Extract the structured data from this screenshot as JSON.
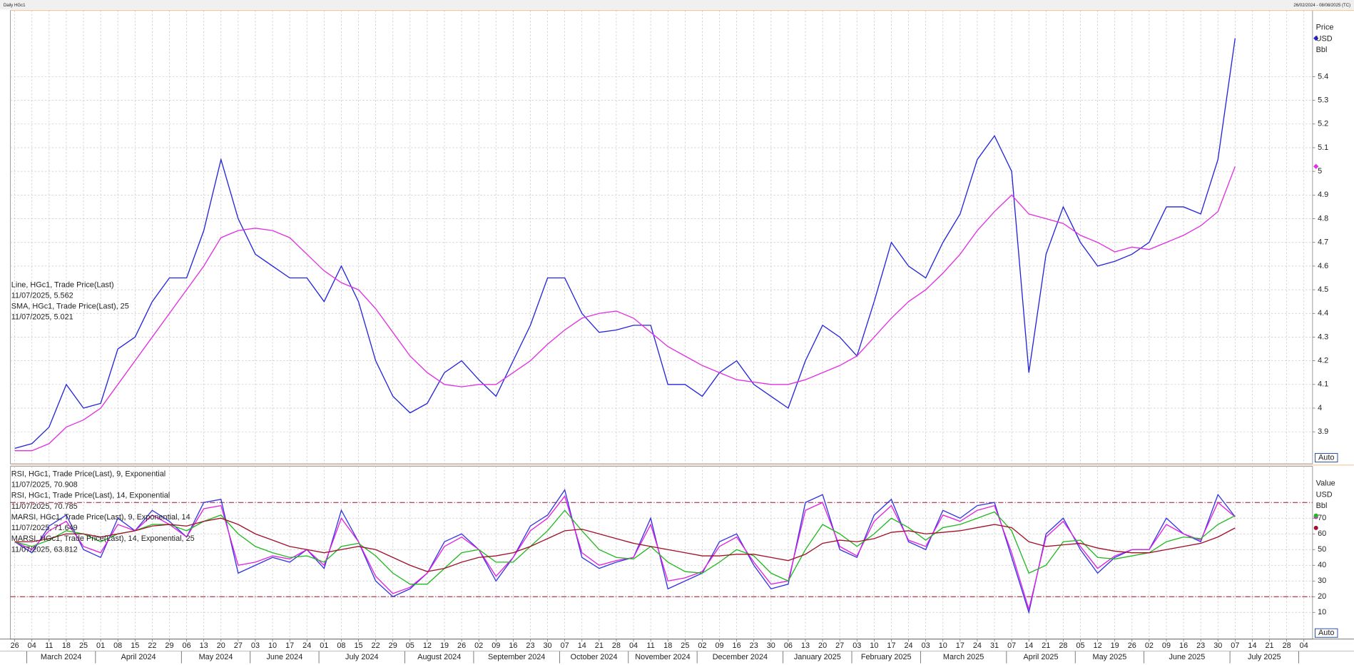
{
  "header": {
    "title": "Daily HGc1",
    "date_range": "26/02/2024 - 08/08/2025 (TC)"
  },
  "chart_data": [
    {
      "type": "line",
      "axis_label": [
        "Price",
        "USD",
        "Bbl"
      ],
      "button": "Auto",
      "ylim": [
        3.765,
        5.68
      ],
      "yticks": [
        3.9,
        4,
        4.1,
        4.2,
        4.3,
        4.4,
        4.5,
        4.6,
        4.7,
        4.8,
        4.9,
        5,
        5.1,
        5.2,
        5.3,
        5.4
      ],
      "grid": true,
      "series": [
        {
          "name": "Line, HGc1, Trade Price(Last)",
          "legend_value": "11/07/2025, 5.562",
          "color": "#2424dc",
          "values": [
            3.83,
            3.85,
            3.92,
            4.1,
            4.0,
            4.02,
            4.25,
            4.3,
            4.45,
            4.55,
            4.55,
            4.75,
            5.05,
            4.8,
            4.65,
            4.6,
            4.55,
            4.55,
            4.45,
            4.6,
            4.45,
            4.2,
            4.05,
            3.98,
            4.02,
            4.15,
            4.2,
            4.12,
            4.05,
            4.2,
            4.35,
            4.55,
            4.55,
            4.4,
            4.32,
            4.33,
            4.35,
            4.35,
            4.1,
            4.1,
            4.05,
            4.15,
            4.2,
            4.1,
            4.05,
            4.0,
            4.2,
            4.35,
            4.3,
            4.22,
            4.45,
            4.7,
            4.6,
            4.55,
            4.7,
            4.82,
            5.05,
            5.15,
            5.0,
            4.15,
            4.65,
            4.85,
            4.7,
            4.6,
            4.62,
            4.65,
            4.7,
            4.85,
            4.85,
            4.82,
            5.05,
            5.562,
            null,
            null,
            null,
            null
          ]
        },
        {
          "name": "SMA, HGc1, Trade Price(Last),  25",
          "legend_value": "11/07/2025, 5.021",
          "color": "#e030e0",
          "values": [
            3.82,
            3.82,
            3.85,
            3.92,
            3.95,
            4.0,
            4.1,
            4.2,
            4.3,
            4.4,
            4.5,
            4.6,
            4.72,
            4.75,
            4.76,
            4.75,
            4.72,
            4.65,
            4.58,
            4.53,
            4.5,
            4.42,
            4.32,
            4.22,
            4.15,
            4.1,
            4.09,
            4.1,
            4.1,
            4.15,
            4.2,
            4.27,
            4.33,
            4.38,
            4.4,
            4.41,
            4.38,
            4.32,
            4.26,
            4.22,
            4.18,
            4.15,
            4.12,
            4.11,
            4.1,
            4.1,
            4.12,
            4.15,
            4.18,
            4.22,
            4.3,
            4.38,
            4.45,
            4.5,
            4.57,
            4.65,
            4.75,
            4.83,
            4.9,
            4.82,
            4.8,
            4.78,
            4.73,
            4.7,
            4.66,
            4.68,
            4.67,
            4.7,
            4.73,
            4.77,
            4.83,
            5.021,
            null,
            null,
            null,
            null
          ]
        }
      ]
    },
    {
      "type": "line",
      "axis_label": [
        "Value",
        "USD",
        "Bbl"
      ],
      "button": "Auto",
      "ylim": [
        -7,
        103
      ],
      "yticks": [
        10,
        20,
        30,
        40,
        50,
        60,
        70
      ],
      "grid": true,
      "reference_lines": [
        80,
        20
      ],
      "categories": [
        "26",
        "04",
        "11",
        "18",
        "25",
        "01",
        "08",
        "15",
        "22",
        "29",
        "06",
        "13",
        "20",
        "27",
        "03",
        "10",
        "17",
        "24",
        "01",
        "08",
        "15",
        "22",
        "29",
        "05",
        "12",
        "19",
        "26",
        "02",
        "09",
        "16",
        "23",
        "30",
        "07",
        "14",
        "21",
        "28",
        "04",
        "11",
        "18",
        "25",
        "02",
        "09",
        "16",
        "23",
        "30",
        "06",
        "13",
        "20",
        "27",
        "03",
        "10",
        "17",
        "24",
        "03",
        "10",
        "17",
        "24",
        "31",
        "07",
        "14",
        "21",
        "28",
        "05",
        "12",
        "19",
        "26",
        "02",
        "09",
        "16",
        "23",
        "30",
        "07",
        "14",
        "21",
        "28",
        "04"
      ],
      "months": [
        "March 2024",
        "April 2024",
        "May 2024",
        "June 2024",
        "July 2024",
        "August 2024",
        "September 2024",
        "October 2024",
        "November 2024",
        "December 2024",
        "January 2025",
        "February 2025",
        "March 2025",
        "April 2025",
        "May 2025",
        "June 2025",
        "July 2025"
      ],
      "series": [
        {
          "name": "RSI, HGc1, Trade Price(Last),  9, Exponential",
          "legend_value": "11/07/2025, 70.908",
          "color": "#3434e4",
          "values": [
            55,
            48,
            65,
            72,
            50,
            45,
            70,
            62,
            75,
            68,
            58,
            80,
            82,
            35,
            40,
            45,
            42,
            50,
            38,
            75,
            55,
            30,
            20,
            25,
            35,
            55,
            60,
            50,
            30,
            45,
            65,
            72,
            88,
            45,
            38,
            42,
            45,
            70,
            25,
            30,
            35,
            55,
            60,
            40,
            25,
            28,
            80,
            85,
            50,
            45,
            72,
            82,
            55,
            50,
            75,
            70,
            78,
            80,
            45,
            10,
            60,
            70,
            50,
            35,
            45,
            50,
            50,
            70,
            60,
            55,
            85,
            70.908,
            null,
            null,
            null,
            null
          ]
        },
        {
          "name": "RSI, HGc1, Trade Price(Last),  14, Exponential",
          "legend_value": "11/07/2025, 70.785",
          "color": "#e020e0",
          "values": [
            55,
            50,
            62,
            68,
            52,
            48,
            66,
            62,
            72,
            66,
            58,
            76,
            78,
            40,
            42,
            46,
            44,
            50,
            40,
            70,
            55,
            33,
            22,
            26,
            35,
            52,
            58,
            50,
            33,
            45,
            62,
            70,
            84,
            48,
            40,
            43,
            45,
            66,
            30,
            32,
            36,
            52,
            58,
            42,
            28,
            30,
            75,
            80,
            52,
            46,
            68,
            78,
            56,
            52,
            72,
            68,
            75,
            78,
            48,
            12,
            58,
            68,
            52,
            38,
            46,
            50,
            50,
            66,
            60,
            56,
            80,
            70.785,
            null,
            null,
            null,
            null
          ]
        },
        {
          "name": "MARSI, HGc1, Trade Price(Last),  9, Exponential, 14",
          "legend_value": "11/07/2025, 71.649",
          "color": "#22b822",
          "values": [
            55,
            52,
            56,
            62,
            60,
            55,
            60,
            62,
            66,
            66,
            62,
            68,
            72,
            60,
            52,
            48,
            45,
            46,
            42,
            52,
            54,
            46,
            35,
            28,
            28,
            38,
            48,
            50,
            42,
            42,
            52,
            62,
            75,
            62,
            50,
            45,
            44,
            52,
            42,
            36,
            35,
            42,
            50,
            46,
            35,
            30,
            50,
            66,
            60,
            52,
            60,
            70,
            64,
            56,
            64,
            66,
            70,
            74,
            62,
            35,
            40,
            55,
            56,
            45,
            44,
            46,
            48,
            55,
            58,
            57,
            66,
            71.649,
            null,
            null,
            null,
            null
          ]
        },
        {
          "name": "MARSI, HGc1, Trade Price(Last),  14, Exponential, 25",
          "legend_value": "11/07/2025, 63.812",
          "color": "#a01028",
          "values": [
            55,
            55,
            57,
            60,
            60,
            58,
            60,
            62,
            65,
            66,
            65,
            68,
            70,
            66,
            60,
            56,
            52,
            50,
            48,
            50,
            52,
            50,
            45,
            40,
            36,
            38,
            42,
            45,
            46,
            48,
            52,
            57,
            62,
            63,
            60,
            57,
            54,
            52,
            50,
            48,
            46,
            46,
            47,
            47,
            45,
            43,
            47,
            54,
            56,
            55,
            57,
            61,
            62,
            60,
            61,
            62,
            64,
            66,
            64,
            55,
            52,
            53,
            54,
            51,
            49,
            48,
            48,
            50,
            52,
            54,
            58,
            63.812,
            null,
            null,
            null,
            null
          ]
        }
      ]
    }
  ]
}
